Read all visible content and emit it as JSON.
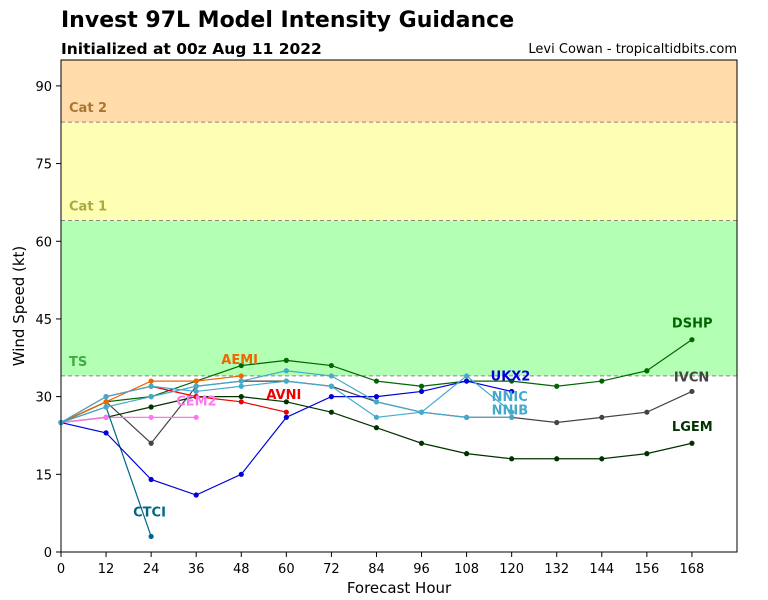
{
  "header": {
    "title": "Invest 97L Model Intensity Guidance",
    "subtitle": "Initialized at 00z Aug 11 2022",
    "credit": "Levi Cowan - tropicaltidbits.com"
  },
  "chart_data": {
    "type": "line",
    "xlabel": "Forecast Hour",
    "ylabel": "Wind Speed (kt)",
    "xlim": [
      0,
      180
    ],
    "ylim": [
      0,
      95
    ],
    "xticks": [
      0,
      12,
      24,
      36,
      48,
      60,
      72,
      84,
      96,
      108,
      120,
      132,
      144,
      156,
      168
    ],
    "yticks": [
      0,
      15,
      30,
      45,
      60,
      75,
      90
    ],
    "grid": false,
    "bands": [
      {
        "label": "TS",
        "from": 34,
        "to": 64,
        "fill": "#b3ffb3",
        "text_color": "#44aa44"
      },
      {
        "label": "Cat 1",
        "from": 64,
        "to": 83,
        "fill": "#ffffb3",
        "text_color": "#aaaa44"
      },
      {
        "label": "Cat 2",
        "from": 83,
        "to": 95,
        "fill": "#ffdcaa",
        "text_color": "#aa7733"
      }
    ],
    "series": [
      {
        "name": "IVCN",
        "color": "#444444",
        "x": [
          0,
          12,
          24,
          36,
          48,
          60,
          72,
          84,
          96,
          108,
          120,
          132,
          144,
          156,
          168
        ],
        "values": [
          25,
          29,
          21,
          32,
          33,
          33,
          32,
          29,
          27,
          26,
          26,
          25,
          26,
          27,
          31
        ]
      },
      {
        "name": "LGEM",
        "color": "#003300",
        "x": [
          0,
          12,
          24,
          36,
          48,
          60,
          72,
          84,
          96,
          108,
          120,
          132,
          144,
          156,
          168
        ],
        "values": [
          25,
          26,
          28,
          30,
          30,
          29,
          27,
          24,
          21,
          19,
          18,
          18,
          18,
          19,
          21
        ]
      },
      {
        "name": "DSHP",
        "color": "#006600",
        "x": [
          0,
          12,
          24,
          36,
          48,
          60,
          72,
          84,
          96,
          108,
          120,
          132,
          144,
          156,
          168
        ],
        "values": [
          25,
          29,
          30,
          33,
          36,
          37,
          36,
          33,
          32,
          33,
          33,
          32,
          33,
          35,
          41
        ]
      },
      {
        "name": "AEMI",
        "color": "#ee6600",
        "x": [
          0,
          12,
          24,
          36,
          48
        ],
        "values": [
          25,
          29,
          33,
          33,
          34
        ]
      },
      {
        "name": "AVNI",
        "color": "#ee0000",
        "x": [
          0,
          12,
          24,
          36,
          48,
          60
        ],
        "values": [
          25,
          30,
          32,
          30,
          29,
          27
        ]
      },
      {
        "name": "CEM2",
        "color": "#ff77ee",
        "x": [
          0,
          12,
          24,
          36
        ],
        "values": [
          25,
          26,
          26,
          26
        ]
      },
      {
        "name": "CTCI",
        "color": "#006688",
        "x": [
          0,
          12,
          24
        ],
        "values": [
          25,
          28,
          3
        ]
      },
      {
        "name": "UKX2",
        "color": "#0000dd",
        "x": [
          0,
          12,
          24,
          36,
          48,
          60,
          72,
          84,
          96,
          108,
          120
        ],
        "values": [
          25,
          23,
          14,
          11,
          15,
          26,
          30,
          30,
          31,
          33,
          31
        ]
      },
      {
        "name": "NNIC",
        "color": "#44aacc",
        "x": [
          0,
          12,
          24,
          36,
          48,
          60,
          72,
          84,
          96,
          108,
          120
        ],
        "values": [
          25,
          30,
          32,
          31,
          32,
          33,
          32,
          26,
          27,
          34,
          27
        ]
      },
      {
        "name": "NNIB",
        "color": "#44aacc",
        "x": [
          0,
          12,
          24,
          36,
          48,
          60,
          72,
          84,
          96,
          108,
          120
        ],
        "values": [
          25,
          28,
          30,
          32,
          33,
          35,
          34,
          29,
          27,
          26,
          26
        ]
      }
    ]
  }
}
